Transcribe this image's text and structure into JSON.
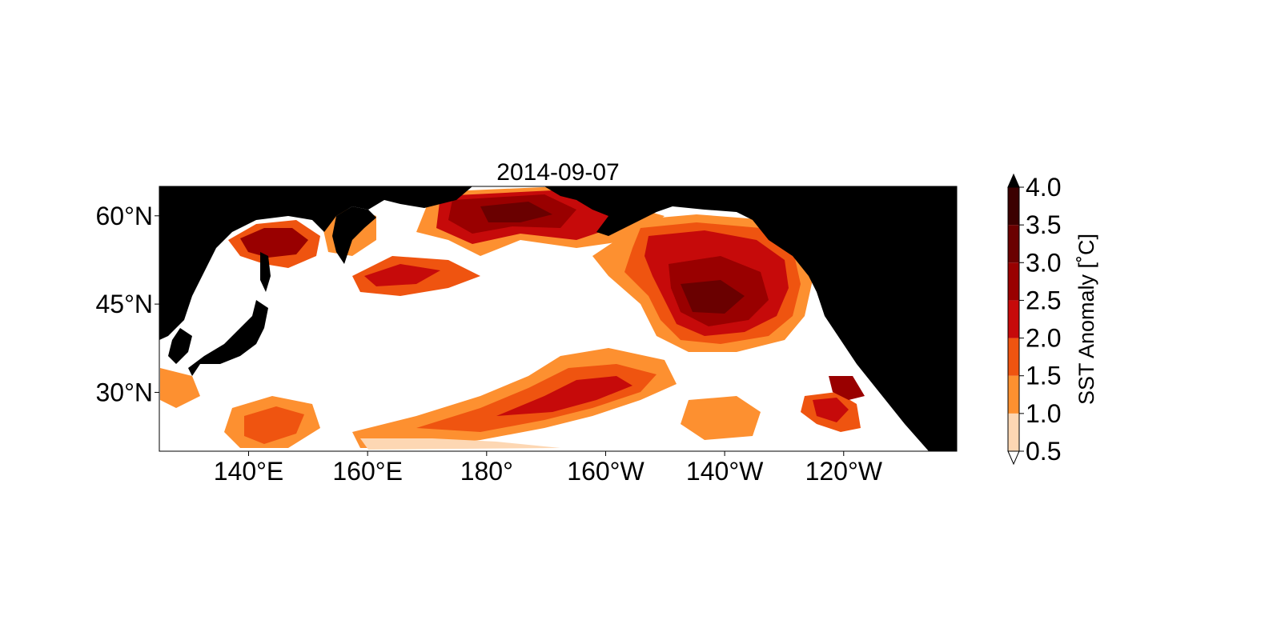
{
  "title": "2014-09-07",
  "map": {
    "extent": {
      "lon_min": 125,
      "lon_max": 259,
      "lat_min": 20,
      "lat_max": 65
    },
    "projection": "plate-carree",
    "land_color": "#000000",
    "ocean_color": "#ffffff",
    "x_ticks": [
      {
        "lon": 140,
        "label": "140°E"
      },
      {
        "lon": 160,
        "label": "160°E"
      },
      {
        "lon": 180,
        "label": "180°"
      },
      {
        "lon": 200,
        "label": "160°W"
      },
      {
        "lon": 220,
        "label": "140°W"
      },
      {
        "lon": 240,
        "label": "120°W"
      }
    ],
    "y_ticks": [
      {
        "lat": 30,
        "label": "30°N"
      },
      {
        "lat": 45,
        "label": "45°N"
      },
      {
        "lat": 60,
        "label": "60°N"
      }
    ]
  },
  "colorbar": {
    "label": "SST Anomaly [$^{\\circ}$C]",
    "label_display": "SST Anomaly [˚C]",
    "extend": "both",
    "levels": [
      0.5,
      1.0,
      1.5,
      2.0,
      2.5,
      3.0,
      3.5,
      4.0
    ],
    "tick_labels": [
      "0.5",
      "1.0",
      "1.5",
      "2.0",
      "2.5",
      "3.0",
      "3.5",
      "4.0"
    ],
    "colors": [
      "#fdd7b3",
      "#fd9030",
      "#ef5410",
      "#c60a0a",
      "#990000",
      "#6a0000",
      "#3b0000"
    ],
    "under_color": "#ffffff",
    "over_color": "#000000"
  },
  "chart_data": {
    "type": "heatmap",
    "title": "2014-09-07",
    "xlabel": "",
    "ylabel": "",
    "x_range": [
      125,
      259
    ],
    "y_range": [
      20,
      65
    ],
    "value_label": "SST Anomaly [˚C]",
    "value_range": [
      0.5,
      4.0
    ]
  }
}
